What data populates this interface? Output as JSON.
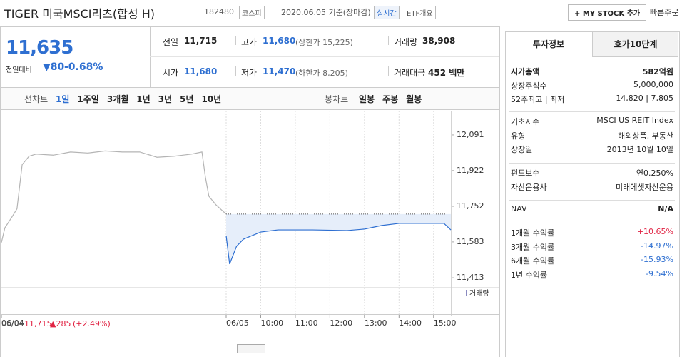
{
  "header": {
    "name": "TIGER 미국MSCI리츠(합성 H)",
    "code": "182480",
    "market": "코스피",
    "date": "2020.06.05 기준(장마감)",
    "realtime": "실시간",
    "etf": "ETF개요",
    "mystock": "+ MY STOCK 추가",
    "quick": "빠른주문"
  },
  "price": {
    "current": "11,635",
    "change_label": "전일대비",
    "change": "▼80",
    "pct": "-0.68%"
  },
  "stats": [
    [
      {
        "label": "전일",
        "value": "11,715"
      },
      {
        "label": "고가",
        "value": "11,680",
        "sub": "(상한가 15,225)"
      },
      {
        "label": "거래량",
        "value": "38,908"
      }
    ],
    [
      {
        "label": "시가",
        "value": "11,680"
      },
      {
        "label": "저가",
        "value": "11,470",
        "sub": "(하한가 8,205)"
      },
      {
        "label": "거래대금",
        "value": "452 백만"
      }
    ]
  ],
  "tabs": {
    "line": "선차트",
    "periods": [
      "1일",
      "1주일",
      "3개월",
      "1년",
      "3년",
      "5년",
      "10년"
    ],
    "candle": "봉차트",
    "candles": [
      "일봉",
      "주봉",
      "월봉"
    ]
  },
  "chart_data": {
    "type": "line",
    "ylim": [
      11376,
      12206
    ],
    "yticks": [
      {
        "value": 12091,
        "label": "12,091"
      },
      {
        "value": 11922,
        "label": "11,922"
      },
      {
        "value": 11752,
        "label": "11,752"
      },
      {
        "value": 11583,
        "label": "11,583"
      },
      {
        "value": 11413,
        "label": "11,413"
      }
    ],
    "xlim": [
      0,
      13
    ],
    "xticks": [
      {
        "value": 0,
        "label": "06/04"
      },
      {
        "value": 6.5,
        "label": "06/05"
      },
      {
        "value": 7.5,
        "label": "10:00"
      },
      {
        "value": 8.5,
        "label": "11:00"
      },
      {
        "value": 9.5,
        "label": "12:00"
      },
      {
        "value": 10.5,
        "label": "13:00"
      },
      {
        "value": 11.5,
        "label": "14:00"
      },
      {
        "value": 12.5,
        "label": "15:00"
      }
    ],
    "base": 11715,
    "volume_label": "거래량",
    "series": [
      {
        "color": "#b4b4b4",
        "x": [
          0,
          0.1,
          0.3,
          0.45,
          0.6,
          0.8,
          1,
          1.5,
          2,
          2.5,
          3,
          3.5,
          4,
          4.5,
          5,
          5.5,
          5.8,
          5.9,
          6,
          6.2,
          6.4,
          6.5
        ],
        "values": [
          11580,
          11650,
          11700,
          11740,
          11950,
          11990,
          12000,
          11995,
          12010,
          12005,
          12015,
          12010,
          12010,
          11985,
          11990,
          12000,
          12010,
          11890,
          11800,
          11760,
          11730,
          11715
        ]
      },
      {
        "color": "#2e6fd1",
        "x": [
          6.5,
          6.6,
          6.8,
          7,
          7.5,
          8,
          9,
          10,
          10.5,
          11,
          11.5,
          12.5,
          12.8,
          13
        ],
        "values": [
          11613,
          11478,
          11562,
          11596,
          11630,
          11640,
          11640,
          11637,
          11644,
          11661,
          11671,
          11671,
          11671,
          11640
        ]
      }
    ]
  },
  "footer": {
    "date": "06/04",
    "price": "11,715",
    "change": "▲285",
    "pct": "(+2.49%)"
  },
  "panel": {
    "tabs": [
      "투자정보",
      "호가10단계"
    ],
    "groups": [
      [
        {
          "label": "시가총액",
          "value": "582억원"
        },
        {
          "label": "상장주식수",
          "value": "5,000,000"
        },
        {
          "label": "52주최고 | 최저",
          "value": "14,820 | 7,805"
        }
      ],
      [
        {
          "label": "기초지수",
          "value": "MSCI US REIT Index"
        },
        {
          "label": "유형",
          "value": "해외상품, 부동산"
        },
        {
          "label": "상장일",
          "value": "2013년 10월 10일"
        }
      ],
      [
        {
          "label": "펀드보수",
          "value": "연0.250%"
        },
        {
          "label": "자산운용사",
          "value": "미래에셋자산운용"
        }
      ],
      [
        {
          "label": "NAV",
          "value": "N/A"
        }
      ],
      [
        {
          "label": "1개월 수익률",
          "value": "+10.65%"
        },
        {
          "label": "3개월 수익률",
          "value": "-14.97%"
        },
        {
          "label": "6개월 수익률",
          "value": "-15.93%"
        },
        {
          "label": "1년 수익률",
          "value": "-9.54%"
        }
      ]
    ]
  }
}
